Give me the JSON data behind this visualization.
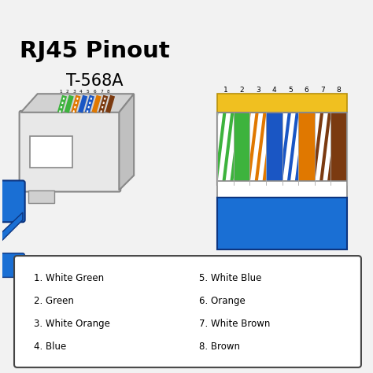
{
  "title_line1": "RJ45 Pinout",
  "title_line2": "T-568A",
  "background_color": "#f2f2f2",
  "wire_colors": [
    {
      "name": "White Green",
      "base": "#3db33d",
      "striped": true,
      "stripe": "#ffffff"
    },
    {
      "name": "Green",
      "base": "#3db33d",
      "striped": false,
      "stripe": null
    },
    {
      "name": "White Orange",
      "base": "#e07800",
      "striped": true,
      "stripe": "#ffffff"
    },
    {
      "name": "Blue",
      "base": "#1a56c4",
      "striped": false,
      "stripe": null
    },
    {
      "name": "White Blue",
      "base": "#1a56c4",
      "striped": true,
      "stripe": "#ffffff"
    },
    {
      "name": "Orange",
      "base": "#e07800",
      "striped": false,
      "stripe": null
    },
    {
      "name": "White Brown",
      "base": "#7b3a10",
      "striped": true,
      "stripe": "#ffffff"
    },
    {
      "name": "Brown",
      "base": "#7b3a10",
      "striped": false,
      "stripe": null
    }
  ],
  "legend_left": [
    "1. White Green",
    "2. Green",
    "3. White Orange",
    "4. Blue"
  ],
  "legend_right": [
    "5. White Blue",
    "6. Orange",
    "7. White Brown",
    "8. Brown"
  ],
  "connector_color": "#e8e8e8",
  "connector_outline": "#888888",
  "cable_color": "#1a6fd4",
  "gold_color": "#f0c020",
  "legend_box_color": "#ffffff",
  "legend_box_outline": "#444444"
}
